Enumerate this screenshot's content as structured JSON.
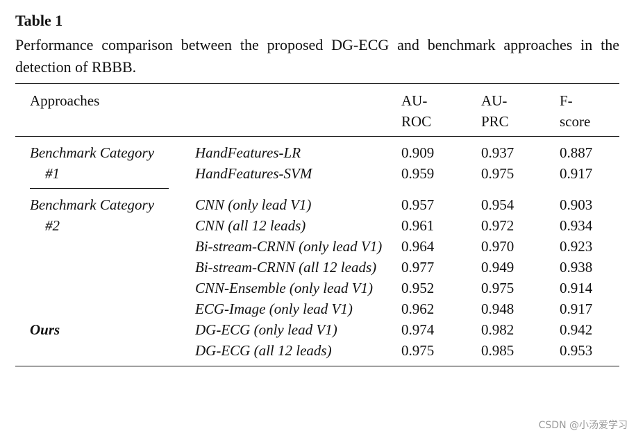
{
  "title": "Table 1",
  "caption": "Performance comparison between the proposed DG-ECG and benchmark approaches in the detection of RBBB.",
  "table": {
    "headers": [
      "Approaches",
      "AU-ROC",
      "AU-PRC",
      "F-score"
    ],
    "groups": [
      {
        "category": "Benchmark Category #1",
        "rows": [
          {
            "method": "HandFeatures-LR",
            "values": [
              "0.909",
              "0.937",
              "0.887"
            ]
          },
          {
            "method": "HandFeatures-SVM",
            "values": [
              "0.959",
              "0.975",
              "0.917"
            ]
          }
        ]
      },
      {
        "category": "Benchmark Category #2",
        "rows": [
          {
            "method": "CNN (only lead V1)",
            "values": [
              "0.957",
              "0.954",
              "0.903"
            ]
          },
          {
            "method": "CNN (all 12 leads)",
            "values": [
              "0.961",
              "0.972",
              "0.934"
            ]
          },
          {
            "method": "Bi-stream-CRNN (only lead V1)",
            "values": [
              "0.964",
              "0.970",
              "0.923"
            ]
          },
          {
            "method": "Bi-stream-CRNN (all 12 leads)",
            "values": [
              "0.977",
              "0.949",
              "0.938"
            ]
          },
          {
            "method": "CNN-Ensemble (only lead V1)",
            "values": [
              "0.952",
              "0.975",
              "0.914"
            ]
          },
          {
            "method": "ECG-Image (only lead V1)",
            "values": [
              "0.962",
              "0.948",
              "0.917"
            ]
          }
        ]
      },
      {
        "category": "Ours",
        "rows": [
          {
            "method": "DG-ECG (only lead V1)",
            "values": [
              "0.974",
              "0.982",
              "0.942"
            ]
          },
          {
            "method": "DG-ECG (all 12 leads)",
            "values": [
              "0.975",
              "0.985",
              "0.953"
            ]
          }
        ]
      }
    ]
  },
  "watermark": "CSDN @小汤爱学习"
}
